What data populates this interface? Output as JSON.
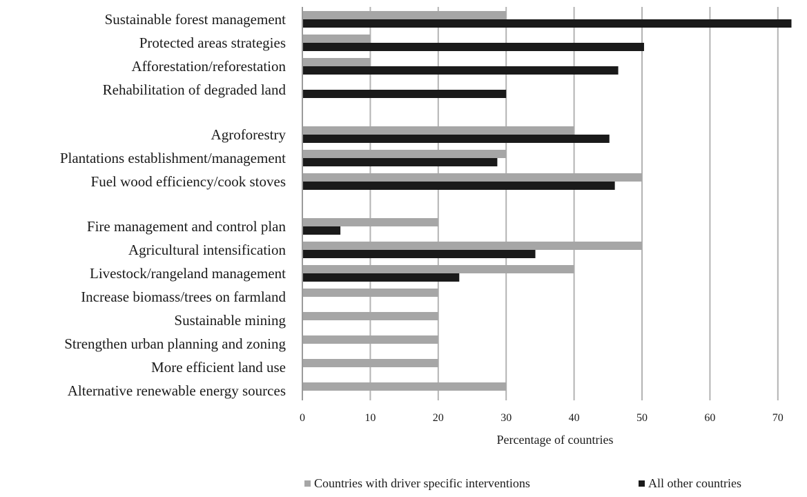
{
  "chart_data": {
    "type": "bar",
    "orientation": "horizontal",
    "categories": [
      "Sustainable forest management",
      "Protected areas strategies",
      "Afforestation/reforestation",
      "Rehabilitation of degraded land",
      "Agroforestry",
      "Plantations establishment/management",
      "Fuel wood efficiency/cook stoves",
      "Fire management and control plan",
      "Agricultural intensification",
      "Livestock/rangeland management",
      "Increase biomass/trees on farmland",
      "Sustainable mining",
      "Strengthen urban planning and zoning",
      "More efficient land use",
      "Alternative renewable energy sources"
    ],
    "series": [
      {
        "name": "Countries with driver specific interventions",
        "color": "#a6a6a6",
        "values": [
          30,
          10,
          10,
          0,
          40,
          30,
          50,
          20,
          50,
          40,
          20,
          20,
          20,
          20,
          30
        ]
      },
      {
        "name": "All other countries",
        "color": "#1a1a1a",
        "values": [
          72,
          50.3,
          46.5,
          30,
          45.2,
          28.7,
          46,
          5.6,
          34.3,
          23.1,
          0,
          0,
          0,
          0,
          0
        ]
      }
    ],
    "xlabel": "Percentage of countries",
    "xlim": [
      0,
      74
    ],
    "xticks": [
      0,
      10,
      20,
      30,
      40,
      50,
      60,
      70
    ],
    "grid": "vertical",
    "legend_position": "bottom"
  }
}
